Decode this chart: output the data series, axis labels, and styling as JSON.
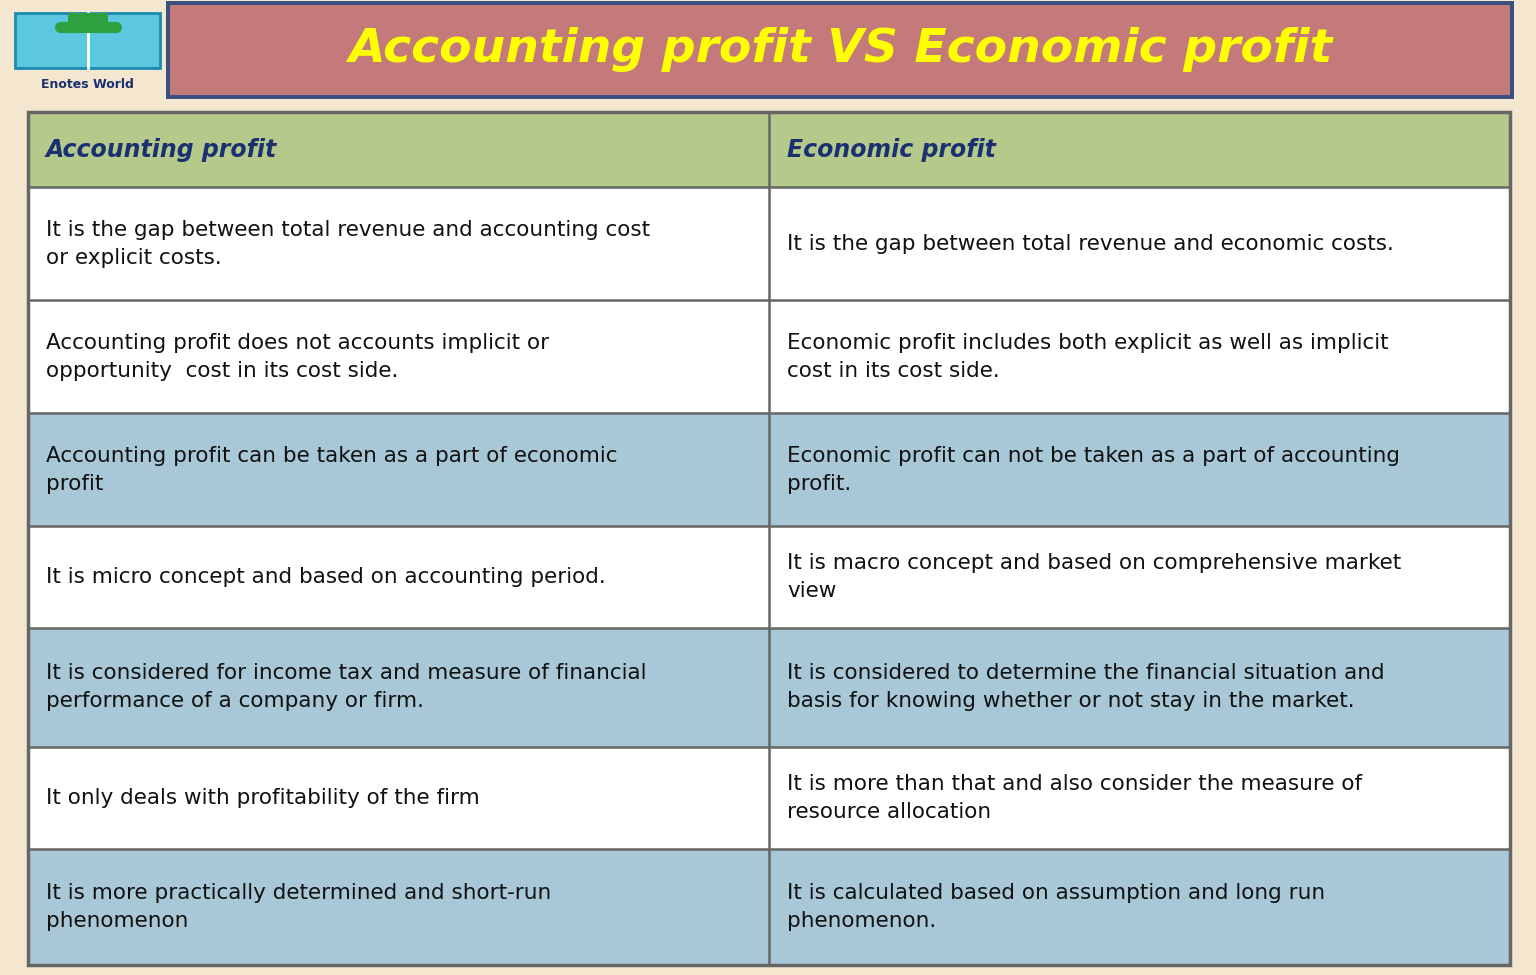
{
  "title": "Accounting profit VS Economic profit",
  "title_color": "#FFFF00",
  "title_bg_color": "#C47A7A",
  "title_border_color": "#3A5080",
  "background_color": "#F5E6D0",
  "header_bg_color": "#B5C98A",
  "header_text_color": "#1A3070",
  "row_colors": [
    "#FFFFFF",
    "#FFFFFF",
    "#A8C8D8",
    "#FFFFFF",
    "#A8C8D8",
    "#FFFFFF",
    "#A8C8D8"
  ],
  "col1_header": "Accounting profit",
  "col2_header": "Economic profit",
  "rows": [
    [
      "It is the gap between total revenue and accounting cost\nor explicit costs.",
      "It is the gap between total revenue and economic costs."
    ],
    [
      "Accounting profit does not accounts implicit or\nopportunity  cost in its cost side.",
      "Economic profit includes both explicit as well as implicit\ncost in its cost side."
    ],
    [
      "Accounting profit can be taken as a part of economic\nprofit",
      "Economic profit can not be taken as a part of accounting\nprofit."
    ],
    [
      "It is micro concept and based on accounting period.",
      "It is macro concept and based on comprehensive market\nview"
    ],
    [
      "It is considered for income tax and measure of financial\nperformance of a company or firm.",
      "It is considered to determine the financial situation and\nbasis for knowing whether or not stay in the market."
    ],
    [
      "It only deals with profitability of the firm",
      "It is more than that and also consider the measure of\nresource allocation"
    ],
    [
      "It is more practically determined and short-run\nphenomenon",
      "It is calculated based on assumption and long run\nphenomenon."
    ]
  ],
  "border_color": "#666666",
  "text_color": "#111111",
  "font_size": 15.5,
  "header_font_size": 17
}
